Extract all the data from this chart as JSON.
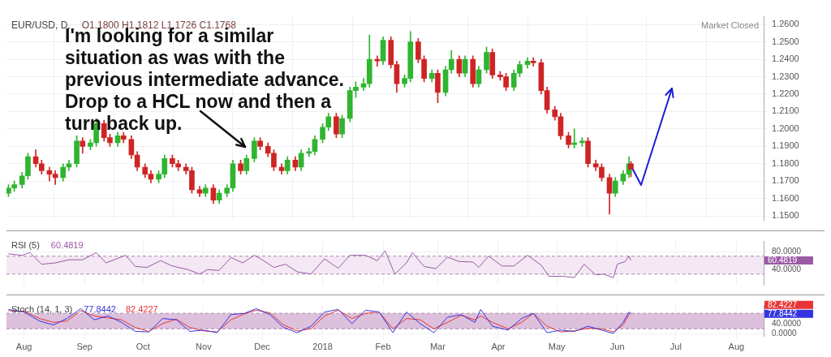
{
  "chart_data": [
    {
      "type": "candlestick",
      "title": "EUR/USD, D,",
      "annotations": [
        "O1.1800 H1.1812 L1.1726 C1.1768",
        "Market Closed",
        {
          "text": "I'm looking for a similar situation as was with the previous intermediate advance. Drop to a HCL now and then a turn back up.",
          "x": "2017-11-23",
          "y": 1.183
        }
      ],
      "x": [
        "2017-07-24",
        "2017-07-27",
        "2017-07-31",
        "2017-08-03",
        "2017-08-07",
        "2017-08-10",
        "2017-08-14",
        "2017-08-17",
        "2017-08-21",
        "2017-08-24",
        "2017-08-28",
        "2017-08-31",
        "2017-09-04",
        "2017-09-07",
        "2017-09-11",
        "2017-09-14",
        "2017-09-18",
        "2017-09-21",
        "2017-09-25",
        "2017-09-28",
        "2017-10-02",
        "2017-10-05",
        "2017-10-09",
        "2017-10-12",
        "2017-10-16",
        "2017-10-19",
        "2017-10-23",
        "2017-10-26",
        "2017-10-30",
        "2017-11-02",
        "2017-11-06",
        "2017-11-09",
        "2017-11-13",
        "2017-11-16",
        "2017-11-20",
        "2017-11-23",
        "2017-11-27",
        "2017-11-30",
        "2017-12-04",
        "2017-12-07",
        "2017-12-11",
        "2017-12-14",
        "2017-12-18",
        "2017-12-21",
        "2017-12-25",
        "2017-12-28",
        "2018-01-01",
        "2018-01-04",
        "2018-01-08",
        "2018-01-11",
        "2018-01-15",
        "2018-01-18",
        "2018-01-22",
        "2018-01-25",
        "2018-01-29",
        "2018-02-01",
        "2018-02-05",
        "2018-02-08",
        "2018-02-12",
        "2018-02-15",
        "2018-02-19",
        "2018-02-22",
        "2018-02-26",
        "2018-03-01",
        "2018-03-05",
        "2018-03-08",
        "2018-03-12",
        "2018-03-15",
        "2018-03-19",
        "2018-03-22",
        "2018-03-26",
        "2018-03-29",
        "2018-04-02",
        "2018-04-05",
        "2018-04-09",
        "2018-04-12",
        "2018-04-16",
        "2018-04-19",
        "2018-04-23",
        "2018-04-26",
        "2018-04-30",
        "2018-05-03",
        "2018-05-07",
        "2018-05-10",
        "2018-05-14",
        "2018-05-17",
        "2018-05-21",
        "2018-05-24",
        "2018-05-28",
        "2018-05-31",
        "2018-06-04",
        "2018-06-07",
        "2018-06-08"
      ],
      "ohlc": [
        [
          1.163,
          1.168,
          1.161,
          1.166
        ],
        [
          1.166,
          1.17,
          1.164,
          1.168
        ],
        [
          1.168,
          1.175,
          1.166,
          1.173
        ],
        [
          1.173,
          1.186,
          1.171,
          1.184
        ],
        [
          1.184,
          1.188,
          1.178,
          1.18
        ],
        [
          1.18,
          1.182,
          1.174,
          1.176
        ],
        [
          1.176,
          1.178,
          1.17,
          1.174
        ],
        [
          1.174,
          1.176,
          1.168,
          1.172
        ],
        [
          1.172,
          1.18,
          1.17,
          1.178
        ],
        [
          1.178,
          1.182,
          1.176,
          1.18
        ],
        [
          1.18,
          1.196,
          1.178,
          1.193
        ],
        [
          1.193,
          1.195,
          1.186,
          1.19
        ],
        [
          1.19,
          1.194,
          1.188,
          1.192
        ],
        [
          1.192,
          1.206,
          1.19,
          1.203
        ],
        [
          1.203,
          1.205,
          1.193,
          1.195
        ],
        [
          1.195,
          1.197,
          1.19,
          1.192
        ],
        [
          1.192,
          1.198,
          1.19,
          1.196
        ],
        [
          1.196,
          1.198,
          1.192,
          1.194
        ],
        [
          1.194,
          1.196,
          1.183,
          1.185
        ],
        [
          1.185,
          1.187,
          1.176,
          1.178
        ],
        [
          1.178,
          1.18,
          1.172,
          1.174
        ],
        [
          1.174,
          1.176,
          1.169,
          1.171
        ],
        [
          1.171,
          1.176,
          1.169,
          1.174
        ],
        [
          1.174,
          1.185,
          1.172,
          1.183
        ],
        [
          1.183,
          1.185,
          1.178,
          1.18
        ],
        [
          1.18,
          1.182,
          1.176,
          1.178
        ],
        [
          1.178,
          1.18,
          1.174,
          1.176
        ],
        [
          1.176,
          1.178,
          1.163,
          1.165
        ],
        [
          1.165,
          1.167,
          1.161,
          1.163
        ],
        [
          1.163,
          1.168,
          1.161,
          1.166
        ],
        [
          1.166,
          1.168,
          1.157,
          1.159
        ],
        [
          1.159,
          1.165,
          1.157,
          1.163
        ],
        [
          1.163,
          1.168,
          1.161,
          1.166
        ],
        [
          1.166,
          1.182,
          1.164,
          1.18
        ],
        [
          1.18,
          1.182,
          1.174,
          1.176
        ],
        [
          1.176,
          1.185,
          1.174,
          1.183
        ],
        [
          1.183,
          1.195,
          1.181,
          1.193
        ],
        [
          1.193,
          1.195,
          1.188,
          1.19
        ],
        [
          1.19,
          1.192,
          1.184,
          1.186
        ],
        [
          1.186,
          1.188,
          1.176,
          1.178
        ],
        [
          1.178,
          1.18,
          1.174,
          1.176
        ],
        [
          1.176,
          1.184,
          1.174,
          1.182
        ],
        [
          1.182,
          1.184,
          1.176,
          1.178
        ],
        [
          1.178,
          1.188,
          1.176,
          1.186
        ],
        [
          1.186,
          1.189,
          1.184,
          1.187
        ],
        [
          1.187,
          1.196,
          1.185,
          1.194
        ],
        [
          1.194,
          1.203,
          1.192,
          1.201
        ],
        [
          1.201,
          1.209,
          1.199,
          1.207
        ],
        [
          1.207,
          1.209,
          1.195,
          1.197
        ],
        [
          1.197,
          1.208,
          1.195,
          1.206
        ],
        [
          1.206,
          1.224,
          1.204,
          1.222
        ],
        [
          1.222,
          1.227,
          1.218,
          1.224
        ],
        [
          1.224,
          1.229,
          1.222,
          1.226
        ],
        [
          1.226,
          1.254,
          1.224,
          1.24
        ],
        [
          1.24,
          1.242,
          1.236,
          1.239
        ],
        [
          1.239,
          1.253,
          1.237,
          1.251
        ],
        [
          1.251,
          1.253,
          1.235,
          1.237
        ],
        [
          1.237,
          1.239,
          1.221,
          1.226
        ],
        [
          1.226,
          1.231,
          1.224,
          1.229
        ],
        [
          1.229,
          1.256,
          1.227,
          1.25
        ],
        [
          1.25,
          1.252,
          1.238,
          1.24
        ],
        [
          1.24,
          1.242,
          1.227,
          1.229
        ],
        [
          1.229,
          1.234,
          1.227,
          1.232
        ],
        [
          1.232,
          1.234,
          1.215,
          1.221
        ],
        [
          1.221,
          1.236,
          1.219,
          1.234
        ],
        [
          1.234,
          1.245,
          1.232,
          1.24
        ],
        [
          1.24,
          1.242,
          1.23,
          1.232
        ],
        [
          1.232,
          1.242,
          1.23,
          1.24
        ],
        [
          1.24,
          1.242,
          1.224,
          1.226
        ],
        [
          1.226,
          1.236,
          1.224,
          1.234
        ],
        [
          1.234,
          1.247,
          1.232,
          1.244
        ],
        [
          1.244,
          1.246,
          1.229,
          1.231
        ],
        [
          1.231,
          1.233,
          1.228,
          1.23
        ],
        [
          1.23,
          1.232,
          1.222,
          1.224
        ],
        [
          1.224,
          1.234,
          1.222,
          1.232
        ],
        [
          1.232,
          1.239,
          1.23,
          1.237
        ],
        [
          1.237,
          1.241,
          1.235,
          1.239
        ],
        [
          1.239,
          1.241,
          1.236,
          1.238
        ],
        [
          1.238,
          1.24,
          1.22,
          1.222
        ],
        [
          1.222,
          1.224,
          1.209,
          1.211
        ],
        [
          1.211,
          1.213,
          1.205,
          1.207
        ],
        [
          1.207,
          1.209,
          1.194,
          1.196
        ],
        [
          1.196,
          1.198,
          1.189,
          1.191
        ],
        [
          1.191,
          1.2,
          1.189,
          1.192
        ],
        [
          1.192,
          1.195,
          1.19,
          1.193
        ],
        [
          1.193,
          1.195,
          1.178,
          1.18
        ],
        [
          1.18,
          1.182,
          1.176,
          1.178
        ],
        [
          1.178,
          1.18,
          1.17,
          1.172
        ],
        [
          1.172,
          1.174,
          1.151,
          1.163
        ],
        [
          1.163,
          1.172,
          1.161,
          1.17
        ],
        [
          1.17,
          1.176,
          1.168,
          1.174
        ],
        [
          1.174,
          1.184,
          1.172,
          1.18
        ],
        [
          1.18,
          1.1812,
          1.1726,
          1.1768
        ]
      ],
      "colors": [
        "#2fb52f",
        "#2fb52f",
        "#2fb52f",
        "#2fb52f",
        "#cf2424",
        "#cf2424",
        "#cf2424",
        "#cf2424",
        "#2fb52f",
        "#2fb52f",
        "#2fb52f",
        "#cf2424",
        "#2fb52f",
        "#2fb52f",
        "#cf2424",
        "#cf2424",
        "#2fb52f",
        "#cf2424",
        "#cf2424",
        "#cf2424",
        "#cf2424",
        "#cf2424",
        "#2fb52f",
        "#2fb52f",
        "#cf2424",
        "#cf2424",
        "#cf2424",
        "#cf2424",
        "#cf2424",
        "#2fb52f",
        "#cf2424",
        "#2fb52f",
        "#2fb52f",
        "#2fb52f",
        "#cf2424",
        "#2fb52f",
        "#2fb52f",
        "#cf2424",
        "#cf2424",
        "#cf2424",
        "#cf2424",
        "#2fb52f",
        "#cf2424",
        "#2fb52f",
        "#2fb52f",
        "#2fb52f",
        "#2fb52f",
        "#2fb52f",
        "#cf2424",
        "#2fb52f",
        "#2fb52f",
        "#2fb52f",
        "#2fb52f",
        "#2fb52f",
        "#cf2424",
        "#2fb52f",
        "#cf2424",
        "#cf2424",
        "#2fb52f",
        "#2fb52f",
        "#cf2424",
        "#cf2424",
        "#2fb52f",
        "#cf2424",
        "#2fb52f",
        "#2fb52f",
        "#cf2424",
        "#2fb52f",
        "#cf2424",
        "#2fb52f",
        "#2fb52f",
        "#cf2424",
        "#cf2424",
        "#cf2424",
        "#2fb52f",
        "#2fb52f",
        "#2fb52f",
        "#cf2424",
        "#cf2424",
        "#cf2424",
        "#cf2424",
        "#cf2424",
        "#cf2424",
        "#2fb52f",
        "#2fb52f",
        "#cf2424",
        "#cf2424",
        "#cf2424",
        "#cf2424",
        "#2fb52f",
        "#2fb52f",
        "#2fb52f",
        "#cf2424"
      ],
      "xticks": [
        {
          "value": "2017-08-01",
          "label": null
        },
        {
          "value": "2017-09-01",
          "label": null
        },
        {
          "value": "2017-10-01",
          "label": null
        },
        {
          "value": "2017-11-01",
          "label": null
        },
        {
          "value": "2017-12-01",
          "label": null
        },
        {
          "value": "2018-01-01",
          "label": null
        },
        {
          "value": "2018-02-01",
          "label": null
        },
        {
          "value": "2018-03-01",
          "label": null
        },
        {
          "value": "2018-04-01",
          "label": null
        },
        {
          "value": "2018-05-01",
          "label": null
        },
        {
          "value": "2018-06-01",
          "label": null
        },
        {
          "value": "2018-07-01",
          "label": null
        },
        {
          "value": "2018-08-01",
          "label": null
        }
      ],
      "xlim": [
        "2017-07-23",
        "2018-08-15"
      ],
      "ylim": [
        1.1475,
        1.2645
      ],
      "yticks": [
        {
          "value": 1.15,
          "label": "1.1500"
        },
        {
          "value": 1.16,
          "label": "1.1600"
        },
        {
          "value": 1.17,
          "label": "1.1700"
        },
        {
          "value": 1.18,
          "label": "1.1800"
        },
        {
          "value": 1.19,
          "label": "1.1900"
        },
        {
          "value": 1.2,
          "label": "1.2000"
        },
        {
          "value": 1.21,
          "label": "1.2100"
        },
        {
          "value": 1.22,
          "label": "1.2200"
        },
        {
          "value": 1.23,
          "label": "1.2300"
        },
        {
          "value": 1.24,
          "label": "1.2400"
        },
        {
          "value": 1.25,
          "label": "1.2500"
        },
        {
          "value": 1.26,
          "label": "1.2600"
        }
      ],
      "grid": true,
      "tick_labels": "y"
    },
    {
      "type": "line",
      "title": "RSI (5)",
      "x": [
        "2017-07-24",
        "2017-07-31",
        "2017-08-04",
        "2017-08-10",
        "2017-08-17",
        "2017-08-24",
        "2017-08-31",
        "2017-09-07",
        "2017-09-12",
        "2017-09-18",
        "2017-09-22",
        "2017-09-27",
        "2017-10-03",
        "2017-10-10",
        "2017-10-16",
        "2017-10-24",
        "2017-10-30",
        "2017-11-03",
        "2017-11-09",
        "2017-11-15",
        "2017-11-21",
        "2017-11-27",
        "2017-12-01",
        "2017-12-07",
        "2017-12-13",
        "2017-12-19",
        "2017-12-26",
        "2018-01-02",
        "2018-01-09",
        "2018-01-15",
        "2018-01-23",
        "2018-01-29",
        "2018-02-02",
        "2018-02-07",
        "2018-02-13",
        "2018-02-16",
        "2018-02-22",
        "2018-02-28",
        "2018-03-06",
        "2018-03-12",
        "2018-03-19",
        "2018-03-22",
        "2018-03-27",
        "2018-04-03",
        "2018-04-09",
        "2018-04-16",
        "2018-04-23",
        "2018-04-27",
        "2018-05-04",
        "2018-05-10",
        "2018-05-15",
        "2018-05-21",
        "2018-05-25",
        "2018-05-30",
        "2018-06-01",
        "2018-06-05",
        "2018-06-07",
        "2018-06-08"
      ],
      "annotations": [
        "60.4819"
      ],
      "series": [
        {
          "color": "#9a5aa6",
          "values": [
            75,
            72,
            78,
            52,
            55,
            62,
            62,
            78,
            55,
            65,
            72,
            47,
            45,
            60,
            48,
            40,
            30,
            40,
            38,
            67,
            55,
            72,
            62,
            45,
            52,
            35,
            30,
            64,
            43,
            72,
            72,
            60,
            82,
            30,
            55,
            78,
            47,
            42,
            68,
            58,
            57,
            45,
            70,
            48,
            48,
            72,
            50,
            25,
            25,
            22,
            52,
            28,
            30,
            22,
            52,
            58,
            70,
            60.4819
          ]
        }
      ],
      "bands": [
        {
          "axis": "y",
          "from": 30,
          "to": 70,
          "color": "#f4e8f4"
        }
      ],
      "ref_lines": [
        {
          "axis": "y",
          "value": 30,
          "color": "#a98aa9",
          "line_style": "dashed"
        },
        {
          "axis": "y",
          "value": 70,
          "color": "#a98aa9",
          "line_style": "dashed"
        }
      ],
      "xlim": [
        "2017-07-23",
        "2018-08-15"
      ],
      "xticks": [
        {
          "value": "2017-08-01",
          "label": null
        },
        {
          "value": "2017-09-01",
          "label": null
        },
        {
          "value": "2017-10-01",
          "label": null
        },
        {
          "value": "2017-11-01",
          "label": null
        },
        {
          "value": "2017-12-01",
          "label": null
        },
        {
          "value": "2018-01-01",
          "label": null
        },
        {
          "value": "2018-02-01",
          "label": null
        },
        {
          "value": "2018-03-01",
          "label": null
        },
        {
          "value": "2018-04-01",
          "label": null
        },
        {
          "value": "2018-05-01",
          "label": null
        },
        {
          "value": "2018-06-01",
          "label": null
        },
        {
          "value": "2018-07-01",
          "label": null
        },
        {
          "value": "2018-08-01",
          "label": null
        }
      ],
      "ylim": [
        6,
        104
      ],
      "yticks": [
        {
          "value": 40,
          "label": "40.0000"
        },
        {
          "value": 80,
          "label": "80.0000"
        }
      ],
      "grid": true,
      "tick_labels": "y"
    },
    {
      "type": "line",
      "title": "Stoch (14, 1, 3)",
      "x": [
        "2017-07-24",
        "2017-08-01",
        "2017-08-09",
        "2017-08-16",
        "2017-08-23",
        "2017-08-30",
        "2017-09-06",
        "2017-09-13",
        "2017-09-20",
        "2017-09-27",
        "2017-10-04",
        "2017-10-11",
        "2017-10-18",
        "2017-10-25",
        "2017-11-01",
        "2017-11-08",
        "2017-11-15",
        "2017-11-22",
        "2017-11-28",
        "2017-12-05",
        "2017-12-12",
        "2017-12-19",
        "2017-12-26",
        "2018-01-02",
        "2018-01-09",
        "2018-01-16",
        "2018-01-23",
        "2018-01-30",
        "2018-02-06",
        "2018-02-13",
        "2018-02-20",
        "2018-02-27",
        "2018-03-06",
        "2018-03-13",
        "2018-03-20",
        "2018-03-23",
        "2018-03-29",
        "2018-04-06",
        "2018-04-13",
        "2018-04-19",
        "2018-04-26",
        "2018-05-03",
        "2018-05-10",
        "2018-05-17",
        "2018-05-24",
        "2018-05-30",
        "2018-06-04",
        "2018-06-07",
        "2018-06-08"
      ],
      "annotations": [
        "77.8442",
        "82.4227"
      ],
      "series": [
        {
          "color": "#3434e0",
          "values": [
            95,
            85,
            50,
            35,
            60,
            98,
            55,
            70,
            45,
            10,
            8,
            60,
            55,
            10,
            15,
            5,
            75,
            80,
            98,
            75,
            25,
            5,
            30,
            85,
            95,
            40,
            92,
            85,
            5,
            85,
            40,
            5,
            65,
            75,
            45,
            95,
            30,
            15,
            60,
            80,
            5,
            15,
            10,
            30,
            15,
            2,
            45,
            85,
            77.8442
          ]
        },
        {
          "color": "#e83434",
          "values": [
            90,
            88,
            60,
            45,
            50,
            90,
            70,
            62,
            55,
            25,
            10,
            40,
            58,
            25,
            12,
            8,
            55,
            78,
            92,
            82,
            35,
            12,
            20,
            70,
            92,
            60,
            80,
            85,
            20,
            60,
            55,
            20,
            45,
            72,
            55,
            70,
            45,
            20,
            45,
            80,
            30,
            8,
            12,
            22,
            20,
            8,
            35,
            75,
            82.4227
          ]
        }
      ],
      "bands": [
        {
          "axis": "y",
          "from": 20,
          "to": 80,
          "color": "#dcc0dc"
        }
      ],
      "ref_lines": [
        {
          "axis": "y",
          "value": 20,
          "color": "#a98aa9",
          "line_style": "dashed"
        },
        {
          "axis": "y",
          "value": 80,
          "color": "#a98aa9",
          "line_style": "dashed"
        }
      ],
      "xlim": [
        "2017-07-23",
        "2018-08-15"
      ],
      "xticks": [
        {
          "value": "2017-08-01",
          "label": "Aug"
        },
        {
          "value": "2017-09-01",
          "label": "Sep"
        },
        {
          "value": "2017-10-01",
          "label": "Oct"
        },
        {
          "value": "2017-11-01",
          "label": "Nov"
        },
        {
          "value": "2017-12-01",
          "label": "Dec"
        },
        {
          "value": "2018-01-01",
          "label": "2018"
        },
        {
          "value": "2018-02-01",
          "label": "Feb"
        },
        {
          "value": "2018-03-01",
          "label": "Mar"
        },
        {
          "value": "2018-04-01",
          "label": "Apr"
        },
        {
          "value": "2018-05-01",
          "label": "May"
        },
        {
          "value": "2018-06-01",
          "label": "Jun"
        },
        {
          "value": "2018-07-01",
          "label": "Jul"
        },
        {
          "value": "2018-08-01",
          "label": "Aug"
        }
      ],
      "ylim": [
        -10,
        112
      ],
      "yticks": [
        {
          "value": 0,
          "label": "0.0000"
        },
        {
          "value": 40,
          "label": "40.0000"
        }
      ],
      "grid": true
    }
  ]
}
